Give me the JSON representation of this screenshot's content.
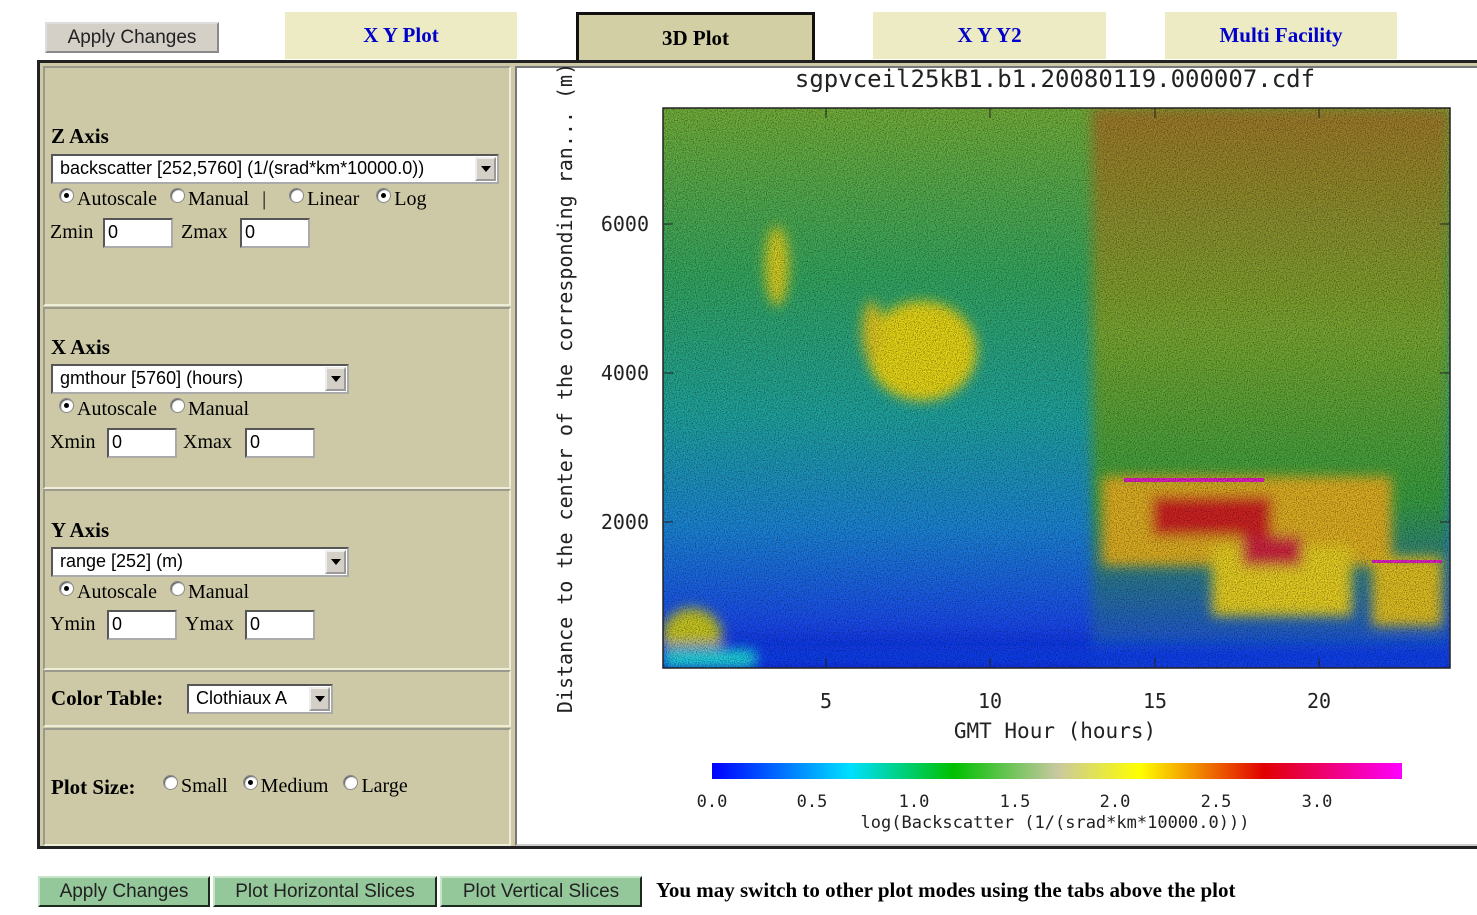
{
  "toolbar": {
    "apply_button": "Apply Changes",
    "tabs": [
      "X Y Plot",
      "3D Plot",
      "X Y Y2",
      "Multi Facility"
    ]
  },
  "z_axis": {
    "label": "Z Axis",
    "select": "backscatter [252,5760] (1/(srad*km*10000.0))",
    "options": [
      "Autoscale",
      "Manual",
      "|",
      "Linear",
      "Log"
    ],
    "min_label": "Zmin",
    "min_value": "0",
    "max_label": "Zmax",
    "max_value": "0"
  },
  "x_axis": {
    "label": "X Axis",
    "select": "gmthour [5760] (hours)",
    "options": [
      "Autoscale",
      "Manual"
    ],
    "min_label": "Xmin",
    "min_value": "0",
    "max_label": "Xmax",
    "max_value": "0"
  },
  "y_axis": {
    "label": "Y Axis",
    "select": "range [252] (m)",
    "options": [
      "Autoscale",
      "Manual"
    ],
    "min_label": "Ymin",
    "min_value": "0",
    "max_label": "Ymax",
    "max_value": "0"
  },
  "color_table": {
    "label": "Color Table:",
    "select": "Clothiaux A"
  },
  "plot_size": {
    "label": "Plot Size:",
    "options": [
      "Small",
      "Medium",
      "Large"
    ]
  },
  "plot": {
    "title": "sgpvceil25kB1.b1.20080119.000007.cdf",
    "y_label": "Distance to the center of the corresponding ran... (m)",
    "x_label": "GMT Hour (hours)",
    "xticks": [
      "5",
      "10",
      "15",
      "20"
    ],
    "yticks": [
      "2000",
      "4000",
      "6000"
    ],
    "colorbar_ticks": [
      "0.0",
      "0.5",
      "1.0",
      "1.5",
      "2.0",
      "2.5",
      "3.0"
    ],
    "colorbar_label": "log(Backscatter (1/(srad*km*10000.0)))"
  },
  "footer": {
    "buttons": [
      "Apply Changes",
      "Plot Horizontal Slices",
      "Plot Vertical Slices"
    ],
    "note": "You may switch to other plot modes using the tabs above the plot"
  }
}
